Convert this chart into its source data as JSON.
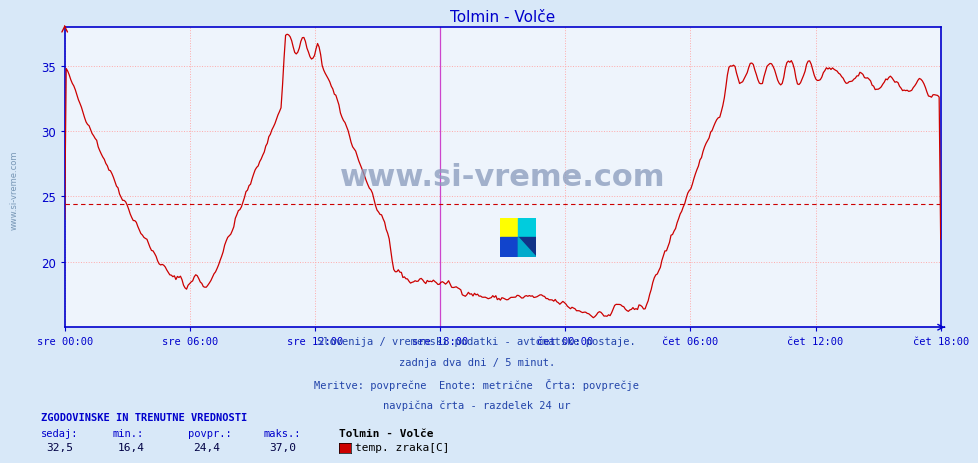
{
  "title": "Tolmin - Volče",
  "title_color": "#0000cc",
  "bg_color": "#d8e8f8",
  "plot_bg_color": "#eef4fc",
  "line_color": "#cc0000",
  "avg_line_color": "#cc0000",
  "avg_line_value": 24.4,
  "grid_color": "#ffaaaa",
  "vline_color": "#cc44cc",
  "border_color": "#0000cc",
  "ylabel_color": "#0000cc",
  "xlabel_color": "#0000cc",
  "watermark_color": "#aabbdd",
  "watermark_text": "www.si-vreme.com",
  "sidebar_text": "www.si-vreme.com",
  "ylim_min": 15,
  "ylim_max": 38,
  "yticks": [
    20,
    25,
    30,
    35
  ],
  "xtick_labels": [
    "sre 00:00",
    "sre 06:00",
    "sre 12:00",
    "sre 18:00",
    "čet 00:00",
    "čet 06:00",
    "čet 12:00",
    "čet 18:00"
  ],
  "num_points": 576,
  "subtitle_lines": [
    "Slovenija / vremenski podatki - avtomatske postaje.",
    "zadnja dva dni / 5 minut.",
    "Meritve: povprečne  Enote: metrične  Črta: povprečje",
    "navpična črta - razdelek 24 ur"
  ],
  "stat_label": "ZGODOVINSKE IN TRENUTNE VREDNOSTI",
  "stat_sedaj": "32,5",
  "stat_min": "16,4",
  "stat_povpr": "24,4",
  "stat_maks": "37,0",
  "stat_station": "Tolmin - Volče",
  "stat_series": "temp. zraka[C]",
  "stat_color": "#cc0000"
}
